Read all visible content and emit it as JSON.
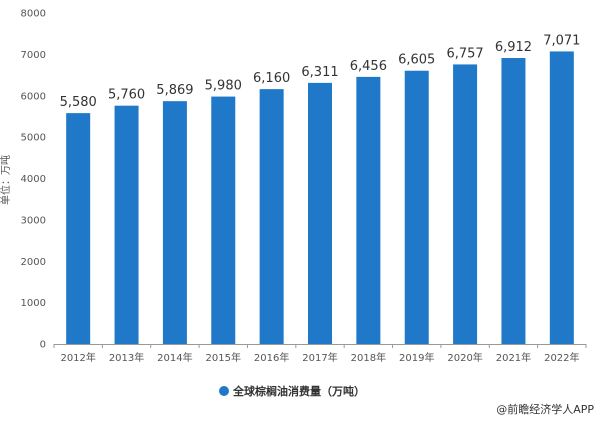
{
  "chart_data": {
    "type": "bar",
    "categories": [
      "2012年",
      "2013年",
      "2014年",
      "2015年",
      "2016年",
      "2017年",
      "2018年",
      "2019年",
      "2020年",
      "2021年",
      "2022年"
    ],
    "values": [
      5580,
      5760,
      5869,
      5980,
      6160,
      6311,
      6456,
      6605,
      6757,
      6912,
      7071
    ],
    "data_labels": [
      "5,580",
      "5,760",
      "5,869",
      "5,980",
      "6,160",
      "6,311",
      "6,456",
      "6,605",
      "6,757",
      "6,912",
      "7,071"
    ],
    "ylabel": "单位：万吨",
    "ylim": [
      0,
      8000
    ],
    "yticks": [
      0,
      1000,
      2000,
      3000,
      4000,
      5000,
      6000,
      7000,
      8000
    ],
    "ytick_labels": [
      "0",
      "1000",
      "2000",
      "3000",
      "4000",
      "5000",
      "6000",
      "7000",
      "8000"
    ],
    "grid": false,
    "legend": {
      "placement": "bottom-center",
      "entries": [
        {
          "label": "全球棕榈油消费量（万吨）",
          "color": "#1f78c8"
        }
      ]
    },
    "bar_color": "#1f78c8",
    "source": "@前瞻经济学人APP"
  }
}
